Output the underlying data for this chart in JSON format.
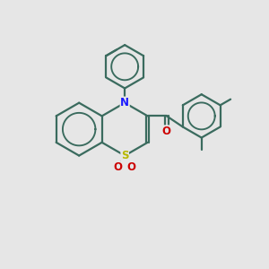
{
  "background_color": "#e6e6e6",
  "bond_color": "#3a6b5e",
  "N_color": "#1a1aff",
  "S_color": "#b8b800",
  "O_color": "#cc0000",
  "lw": 1.6,
  "fig_size": [
    3.0,
    3.0
  ],
  "dpi": 100,
  "xlim": [
    0,
    10
  ],
  "ylim": [
    0,
    10
  ]
}
